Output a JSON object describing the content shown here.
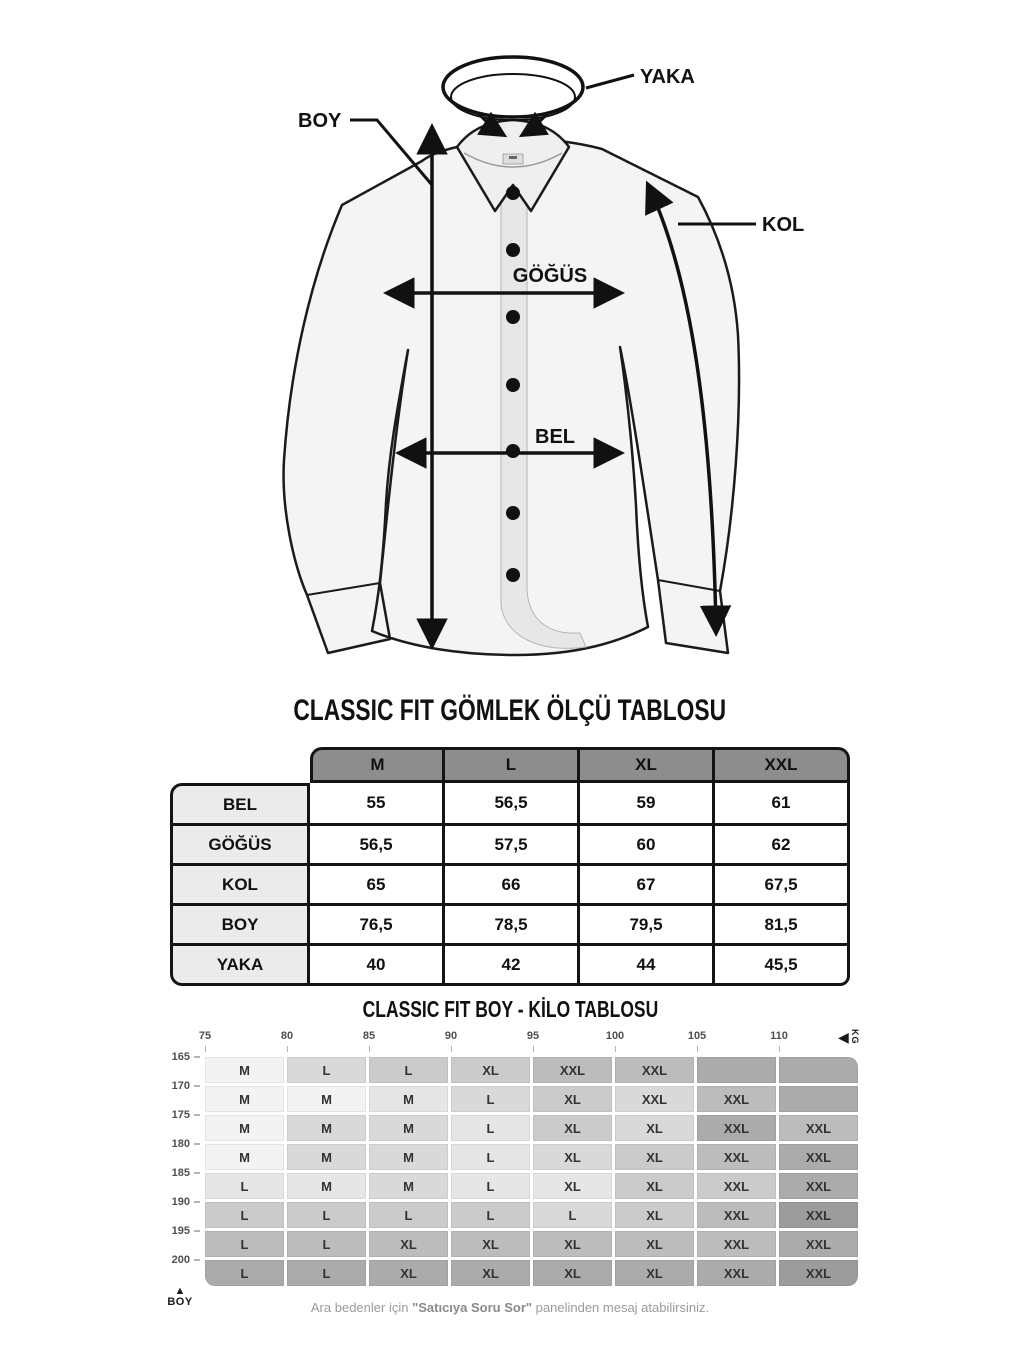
{
  "diagram": {
    "labels": {
      "yaka": "YAKA",
      "boy": "BOY",
      "kol": "KOL",
      "gogus": "GÖĞÜS",
      "bel": "BEL"
    }
  },
  "size_table": {
    "title": "CLASSIC FIT GÖMLEK ÖLÇÜ TABLOSU",
    "columns": [
      "M",
      "L",
      "XL",
      "XXL"
    ],
    "rows": [
      {
        "label": "BEL",
        "values": [
          "55",
          "56,5",
          "59",
          "61"
        ]
      },
      {
        "label": "GÖĞÜS",
        "values": [
          "56,5",
          "57,5",
          "60",
          "62"
        ]
      },
      {
        "label": "KOL",
        "values": [
          "65",
          "66",
          "67",
          "67,5"
        ]
      },
      {
        "label": "BOY",
        "values": [
          "76,5",
          "78,5",
          "79,5",
          "81,5"
        ]
      },
      {
        "label": "YAKA",
        "values": [
          "40",
          "42",
          "44",
          "45,5"
        ]
      }
    ],
    "colors": {
      "header_bg": "#8d8d8d",
      "header_text": "#ffffff",
      "label_bg": "#ebebeb",
      "border": "#141414"
    }
  },
  "kilo_table": {
    "title": "CLASSIC FIT BOY - KİLO TABLOSU",
    "kg_label": "KG",
    "boy_label": "BOY",
    "weights": [
      "75",
      "80",
      "85",
      "90",
      "95",
      "100",
      "105",
      "110"
    ],
    "heights": [
      "165",
      "170",
      "175",
      "180",
      "185",
      "190",
      "195",
      "200"
    ],
    "cell_labels": [
      [
        "M",
        "L",
        "L",
        "XL",
        "XXL",
        "XXL",
        "",
        ""
      ],
      [
        "M",
        "M",
        "M",
        "L",
        "XL",
        "XXL",
        "XXL",
        ""
      ],
      [
        "M",
        "M",
        "M",
        "L",
        "XL",
        "XL",
        "XXL",
        "XXL"
      ],
      [
        "M",
        "M",
        "M",
        "L",
        "XL",
        "XL",
        "XXL",
        "XXL"
      ],
      [
        "L",
        "M",
        "M",
        "L",
        "XL",
        "XL",
        "XXL",
        "XXL"
      ],
      [
        "L",
        "L",
        "L",
        "L",
        "L",
        "XL",
        "XXL",
        "XXL"
      ],
      [
        "L",
        "L",
        "XL",
        "XL",
        "XL",
        "XL",
        "XXL",
        "XXL"
      ],
      [
        "L",
        "L",
        "XL",
        "XL",
        "XL",
        "XL",
        "XXL",
        "XXL"
      ]
    ],
    "cell_shades": [
      [
        0,
        2,
        3,
        3,
        4,
        4,
        5,
        5
      ],
      [
        0,
        0,
        1,
        2,
        3,
        2,
        4,
        5
      ],
      [
        0,
        2,
        2,
        1,
        3,
        2,
        5,
        4
      ],
      [
        0,
        2,
        2,
        1,
        2,
        3,
        4,
        5
      ],
      [
        1,
        1,
        2,
        1,
        1,
        3,
        3,
        5
      ],
      [
        3,
        3,
        3,
        3,
        2,
        3,
        4,
        6
      ],
      [
        4,
        4,
        4,
        4,
        4,
        4,
        4,
        5
      ],
      [
        5,
        5,
        5,
        5,
        5,
        5,
        5,
        6
      ]
    ],
    "shade_palette": [
      "#f3f3f3",
      "#e6e6e6",
      "#d9d9d9",
      "#cbcbcb",
      "#bcbcbc",
      "#ababab",
      "#9c9c9c"
    ]
  },
  "footer": {
    "pre": "Ara bedenler için ",
    "highlight": "\"Satıcıya Soru Sor\"",
    "post": " panelinden mesaj atabilirsiniz."
  }
}
